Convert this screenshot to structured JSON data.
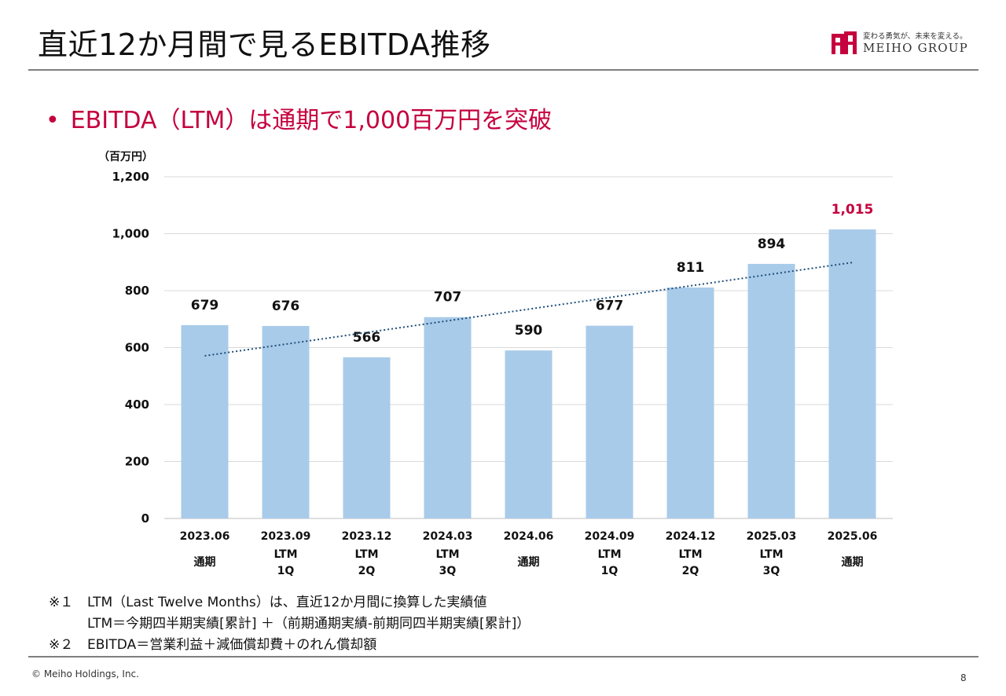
{
  "slide": {
    "title": "直近12か月間で見るEBITDA推移",
    "bullet": "EBITDA（LTM）は通期で1,000百万円を突破",
    "notes": [
      {
        "mark": "※１",
        "text": "LTM（Last Twelve Months）は、直近12か月間に換算した実績値"
      },
      {
        "mark": "",
        "text": "LTM＝今期四半期実績[累計] ＋（前期通期実績-前期同四半期実績[累計]）"
      },
      {
        "mark": "※２",
        "text": "EBITDA＝営業利益＋減価償却費＋のれん償却額"
      }
    ],
    "copyright": "© Meiho Holdings, Inc.",
    "page_number": "8"
  },
  "logo": {
    "tagline": "変わる勇気が、未来を変える。",
    "brand": "MEIHO GROUP"
  },
  "colors": {
    "accent": "#c5003e",
    "bar": "#a9cbea",
    "trendline": "#1f4e79",
    "grid": "#d9d9d9"
  },
  "chart_data": {
    "type": "bar",
    "unit_label": "（百万円）",
    "categories": [
      [
        "2023.06",
        "通期"
      ],
      [
        "2023.09",
        "LTM",
        "1Q"
      ],
      [
        "2023.12",
        "LTM",
        "2Q"
      ],
      [
        "2024.03",
        "LTM",
        "3Q"
      ],
      [
        "2024.06",
        "通期"
      ],
      [
        "2024.09",
        "LTM",
        "1Q"
      ],
      [
        "2024.12",
        "LTM",
        "2Q"
      ],
      [
        "2025.03",
        "LTM",
        "3Q"
      ],
      [
        "2025.06",
        "通期"
      ]
    ],
    "values": [
      679,
      676,
      566,
      707,
      590,
      677,
      811,
      894,
      1015
    ],
    "value_labels": [
      "679",
      "676",
      "566",
      "707",
      "590",
      "677",
      "811",
      "894",
      "1,015"
    ],
    "highlight_index": 8,
    "ylim": [
      0,
      1200
    ],
    "yticks": [
      0,
      200,
      400,
      600,
      800,
      1000,
      1200
    ],
    "ytick_labels": [
      "0",
      "200",
      "400",
      "600",
      "800",
      "1,000",
      "1,200"
    ],
    "grid": true,
    "trendline": "linear, dotted"
  }
}
